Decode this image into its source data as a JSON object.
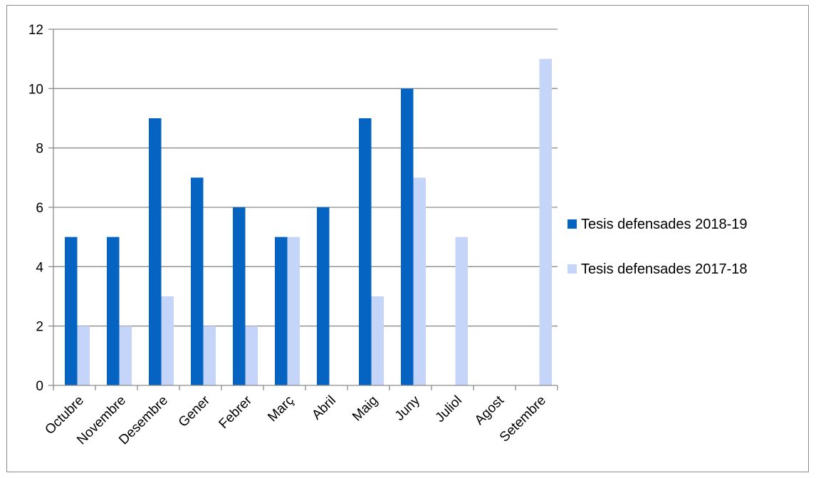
{
  "chart_data": {
    "type": "bar",
    "title": "",
    "xlabel": "",
    "ylabel": "",
    "ylim": [
      0,
      12
    ],
    "yticks": [
      0,
      2,
      4,
      6,
      8,
      10,
      12
    ],
    "grid": true,
    "legend_position": "right",
    "categories": [
      "Octubre",
      "Novembre",
      "Desembre",
      "Gener",
      "Febrer",
      "Març",
      "Abril",
      "Maig",
      "Juny",
      "Juliol",
      "Agost",
      "Setembre"
    ],
    "series": [
      {
        "name": "Tesis defensades 2018-19",
        "color": "#0563C1",
        "values": [
          5,
          5,
          9,
          7,
          6,
          5,
          6,
          9,
          10,
          0,
          0,
          0
        ]
      },
      {
        "name": "Tesis defensades 2017-18",
        "color": "#C5D5FA",
        "values": [
          2,
          2,
          3,
          2,
          2,
          5,
          0,
          3,
          7,
          5,
          0,
          11
        ]
      }
    ]
  }
}
